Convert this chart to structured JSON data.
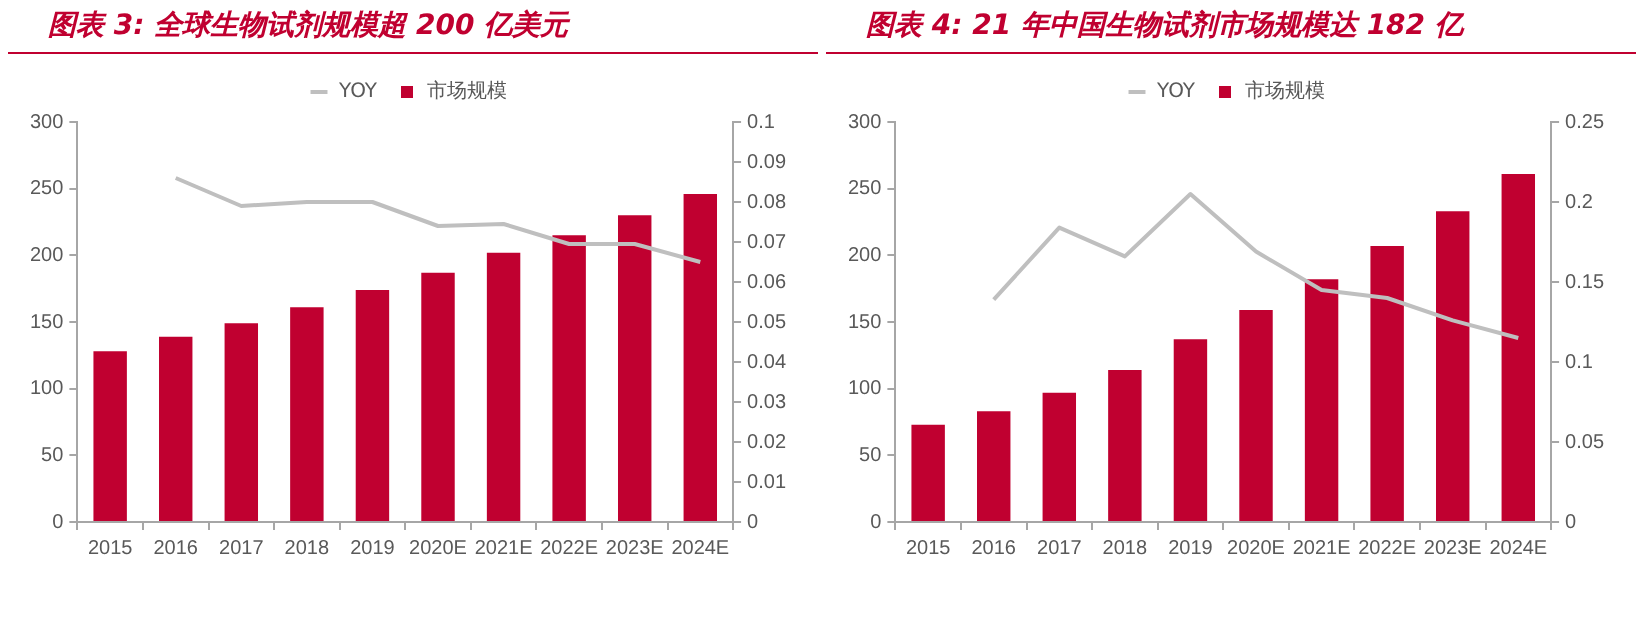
{
  "chart_data": [
    {
      "type": "bar",
      "title": "图表 3: 全球生物试剂规模超 200 亿美元",
      "categories": [
        "2015",
        "2016",
        "2017",
        "2018",
        "2019",
        "2020E",
        "2021E",
        "2022E",
        "2023E",
        "2024E"
      ],
      "series": [
        {
          "name": "市场规模",
          "color": "#c00030",
          "values": [
            128,
            139,
            149,
            161,
            174,
            187,
            202,
            215,
            230,
            246
          ]
        },
        {
          "name": "YOY",
          "type": "line",
          "axis": "y2",
          "color": "#bfbfbf",
          "values": [
            null,
            0.086,
            0.079,
            0.08,
            0.08,
            0.074,
            0.0745,
            0.0695,
            0.0695,
            0.065
          ]
        }
      ],
      "ylim": [
        0,
        300
      ],
      "yticks": [
        0,
        50,
        100,
        150,
        200,
        250,
        300
      ],
      "y2lim": [
        0,
        0.1
      ],
      "y2ticks": [
        0,
        0.01,
        0.02,
        0.03,
        0.04,
        0.05,
        0.06,
        0.07,
        0.08,
        0.09,
        0.1
      ],
      "legend": "top",
      "grid": false,
      "marker": "none"
    },
    {
      "type": "bar",
      "title": "图表 4: 21 年中国生物试剂市场规模达 182 亿",
      "categories": [
        "2015",
        "2016",
        "2017",
        "2018",
        "2019",
        "2020E",
        "2021E",
        "2022E",
        "2023E",
        "2024E"
      ],
      "series": [
        {
          "name": "市场规模",
          "color": "#c00030",
          "values": [
            73,
            83,
            97,
            114,
            137,
            159,
            182,
            207,
            233,
            261
          ]
        },
        {
          "name": "YOY",
          "type": "line",
          "axis": "y2",
          "color": "#bfbfbf",
          "values": [
            null,
            0.139,
            0.184,
            0.166,
            0.205,
            0.169,
            0.145,
            0.14,
            0.126,
            0.115
          ]
        }
      ],
      "ylim": [
        0,
        300
      ],
      "yticks": [
        0,
        50,
        100,
        150,
        200,
        250,
        300
      ],
      "y2lim": [
        0,
        0.25
      ],
      "y2ticks": [
        0,
        0.05,
        0.1,
        0.15,
        0.2,
        0.25
      ],
      "legend": "top",
      "grid": false,
      "marker": "none"
    }
  ]
}
